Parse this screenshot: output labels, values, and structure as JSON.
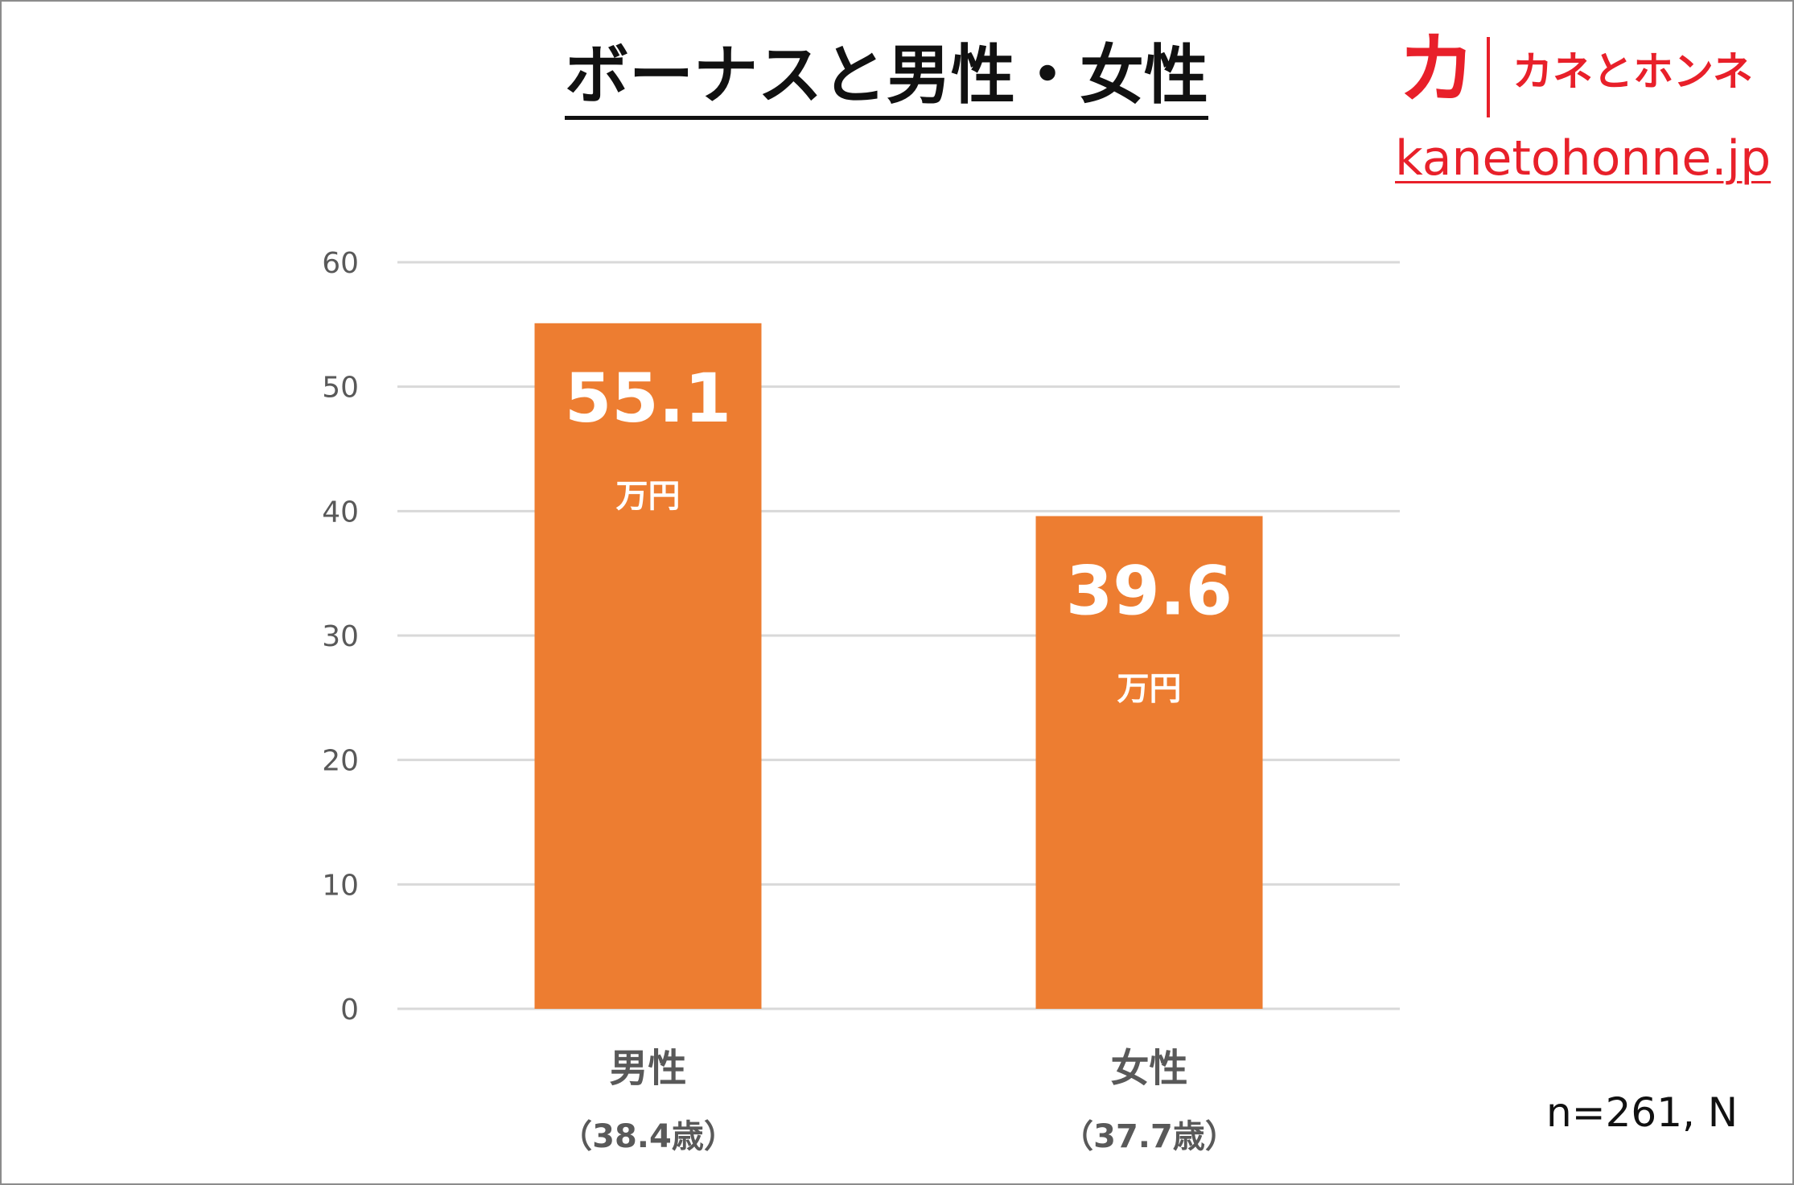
{
  "title": "ボーナスと男性・女性",
  "logo": {
    "mark": "カ",
    "name": "カネとホンネ",
    "url": "kanetohonne.jp",
    "color": "#e8202a"
  },
  "note": "n=261, N",
  "colors": {
    "bar": "#ed7d31",
    "grid": "#d9d9d9",
    "value_text": "#ffffff",
    "axis_text": "#595959"
  },
  "chart_data": {
    "type": "bar",
    "title": "ボーナスと男性・女性",
    "categories": [
      "男性",
      "女性"
    ],
    "category_sublabels": [
      "（38.4歳）",
      "（37.7歳）"
    ],
    "values": [
      55.1,
      39.6
    ],
    "value_labels": [
      "55.1",
      "39.6"
    ],
    "value_unit": "万円",
    "ylim": [
      0,
      60
    ],
    "yticks": [
      0,
      10,
      20,
      30,
      40,
      50,
      60
    ],
    "grid": true,
    "legend": "none",
    "xlabel": "",
    "ylabel": ""
  }
}
